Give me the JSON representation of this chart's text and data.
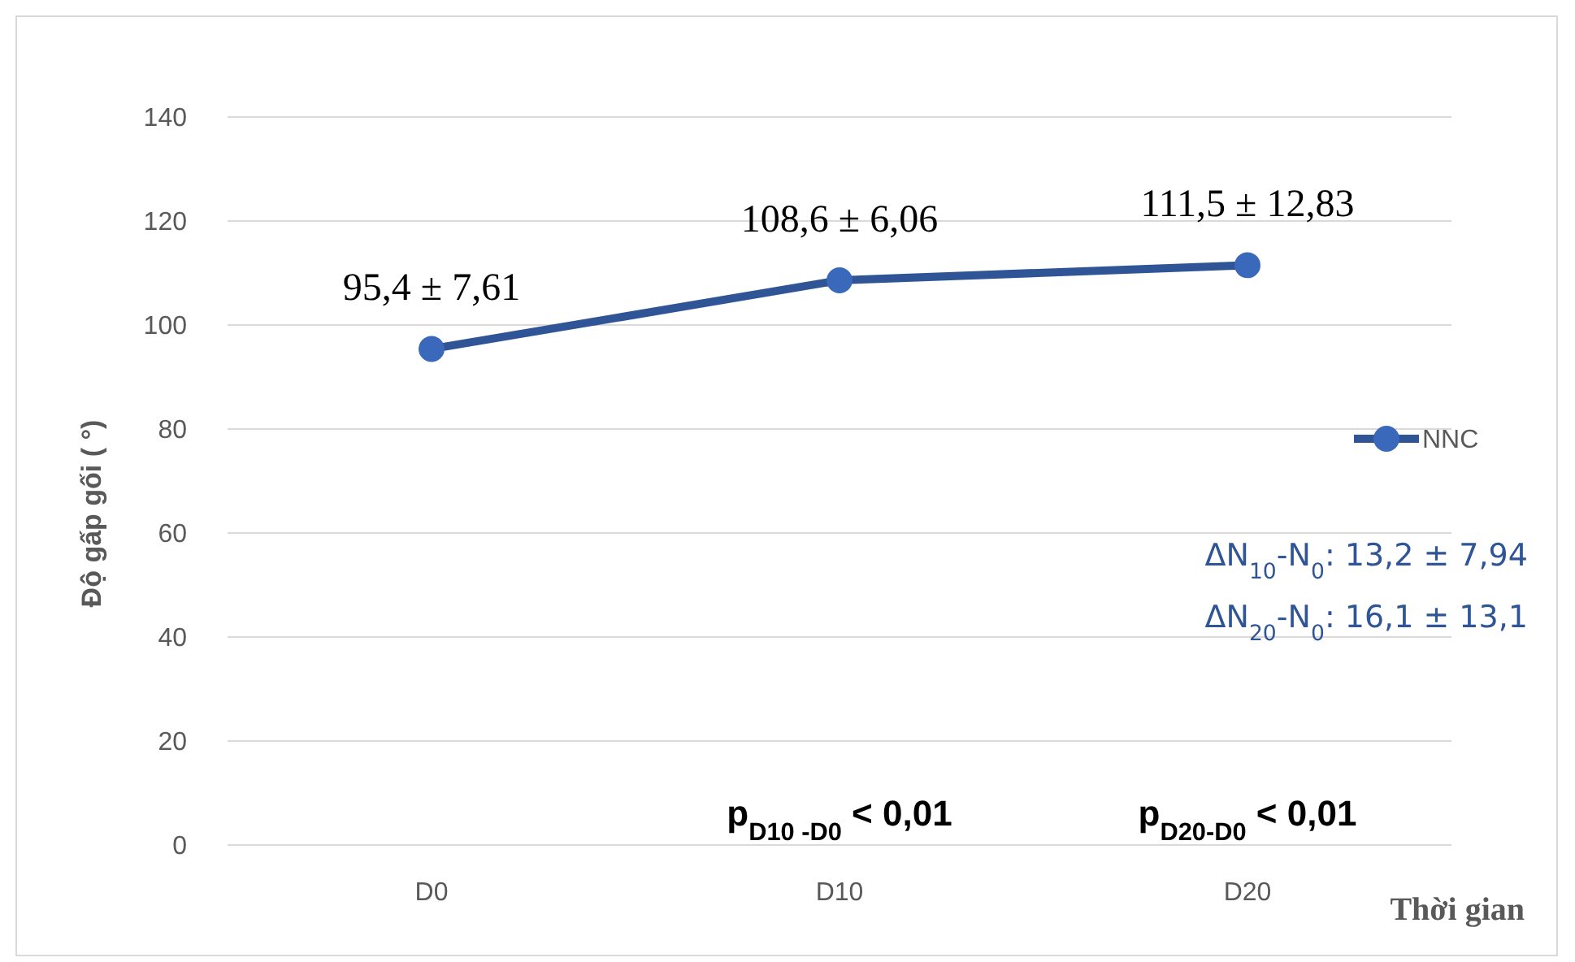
{
  "chart_data": {
    "type": "line",
    "xlabel": "Thời gian",
    "ylabel": "Độ gấp gối ( °)",
    "categories": [
      "D0",
      "D10",
      "D20"
    ],
    "series": [
      {
        "name": "NNC",
        "color": "#2f5597",
        "values": [
          95.4,
          108.6,
          111.5
        ],
        "value_labels": [
          "95,4 ± 7,61",
          "108,6 ± 6,06",
          "111,5 ± 12,83"
        ]
      }
    ],
    "ylim": [
      0,
      140
    ],
    "yticks": [
      0,
      20,
      40,
      60,
      80,
      100,
      120,
      140
    ],
    "grid": "y",
    "legend": "right",
    "marker": "circle",
    "line_style": "solid",
    "annotations": [
      "ΔN$_{10}$-N$_{0}$: 13,2 ±  7,94",
      "ΔN$_{20}$-N$_{0}$: 16,1 ±  13,1",
      "p$_{D10 -D0}$ < 0,01",
      "p$_{D20-D0}$ < 0,01"
    ]
  }
}
